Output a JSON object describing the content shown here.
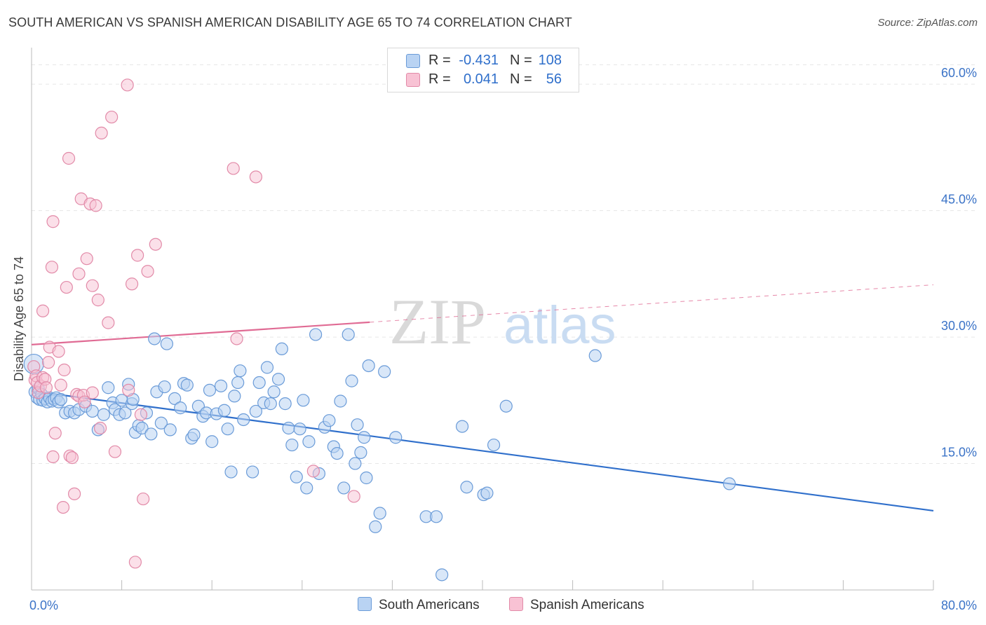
{
  "title": "SOUTH AMERICAN VS SPANISH AMERICAN DISABILITY AGE 65 TO 74 CORRELATION CHART",
  "source": "Source: ZipAtlas.com",
  "watermark": {
    "zip": "ZIP",
    "atlas": "atlas"
  },
  "legend": {
    "r_label": "R =",
    "n_label": "N =",
    "rows": [
      {
        "r": "-0.431",
        "n": "108"
      },
      {
        "r": "0.041",
        "n": "56"
      }
    ]
  },
  "colors": {
    "blue_fill": "#b9d3f3",
    "blue_stroke": "#6a9bd8",
    "blue_line": "#2f6fcb",
    "pink_fill": "#f8c2d4",
    "pink_stroke": "#e28aa8",
    "pink_line": "#e06b94",
    "tick_label": "#3b73c7",
    "grid": "#e6e6e6"
  },
  "chart_data": {
    "type": "scatter",
    "title": "SOUTH AMERICAN VS SPANISH AMERICAN DISABILITY AGE 65 TO 74 CORRELATION CHART",
    "xlabel": "",
    "ylabel": "Disability Age 65 to 74",
    "xlim": [
      0,
      80
    ],
    "ylim": [
      0,
      64
    ],
    "x_tick_labels": [
      "0.0%",
      "80.0%"
    ],
    "y_ticks": [
      15,
      30,
      45,
      60
    ],
    "y_tick_labels": [
      "15.0%",
      "30.0%",
      "45.0%",
      "60.0%"
    ],
    "grid": "horizontal dashed",
    "legend_position": "top-center",
    "series": [
      {
        "name": "South Americans",
        "r": -0.431,
        "n": 108,
        "trend": {
          "x": [
            0,
            80
          ],
          "y": [
            23.6,
            9.4
          ],
          "style": "solid"
        },
        "points": [
          [
            0.2,
            26.8
          ],
          [
            0.3,
            23.5
          ],
          [
            0.5,
            22.8
          ],
          [
            0.6,
            23.9
          ],
          [
            0.7,
            22.6
          ],
          [
            0.9,
            23.2
          ],
          [
            1.0,
            22.5
          ],
          [
            1.2,
            22.7
          ],
          [
            1.4,
            22.3
          ],
          [
            1.6,
            22.8
          ],
          [
            1.8,
            22.4
          ],
          [
            2.0,
            22.6
          ],
          [
            2.2,
            22.8
          ],
          [
            2.4,
            22.3
          ],
          [
            2.6,
            22.6
          ],
          [
            3.0,
            21.0
          ],
          [
            3.4,
            21.2
          ],
          [
            3.8,
            21.0
          ],
          [
            4.2,
            21.4
          ],
          [
            4.8,
            21.8
          ],
          [
            5.4,
            21.2
          ],
          [
            5.9,
            19.0
          ],
          [
            6.4,
            20.8
          ],
          [
            6.8,
            24.0
          ],
          [
            7.2,
            22.2
          ],
          [
            7.4,
            21.4
          ],
          [
            7.8,
            20.8
          ],
          [
            8.0,
            22.5
          ],
          [
            8.3,
            21.0
          ],
          [
            8.6,
            24.4
          ],
          [
            8.9,
            22.1
          ],
          [
            9.0,
            22.6
          ],
          [
            9.2,
            18.7
          ],
          [
            9.5,
            19.5
          ],
          [
            9.8,
            19.2
          ],
          [
            10.2,
            21.0
          ],
          [
            10.6,
            18.5
          ],
          [
            10.9,
            29.8
          ],
          [
            11.1,
            23.5
          ],
          [
            11.5,
            19.8
          ],
          [
            11.8,
            24.1
          ],
          [
            12.0,
            29.2
          ],
          [
            12.3,
            19.0
          ],
          [
            12.7,
            22.7
          ],
          [
            13.2,
            21.6
          ],
          [
            13.5,
            24.5
          ],
          [
            13.8,
            24.3
          ],
          [
            14.2,
            18.0
          ],
          [
            14.4,
            18.4
          ],
          [
            14.8,
            21.8
          ],
          [
            15.2,
            20.6
          ],
          [
            15.5,
            21.0
          ],
          [
            15.8,
            23.7
          ],
          [
            16.0,
            17.6
          ],
          [
            16.4,
            20.9
          ],
          [
            16.8,
            24.2
          ],
          [
            17.1,
            21.3
          ],
          [
            17.4,
            19.1
          ],
          [
            17.7,
            14.0
          ],
          [
            18.0,
            23.0
          ],
          [
            18.3,
            24.6
          ],
          [
            18.5,
            26.0
          ],
          [
            18.8,
            20.2
          ],
          [
            19.6,
            14.0
          ],
          [
            19.9,
            21.2
          ],
          [
            20.2,
            24.6
          ],
          [
            20.6,
            22.2
          ],
          [
            20.9,
            26.4
          ],
          [
            21.2,
            22.1
          ],
          [
            21.5,
            23.5
          ],
          [
            21.9,
            25.0
          ],
          [
            22.2,
            28.6
          ],
          [
            22.5,
            22.1
          ],
          [
            22.8,
            19.2
          ],
          [
            23.1,
            17.2
          ],
          [
            23.5,
            13.4
          ],
          [
            23.8,
            19.1
          ],
          [
            24.1,
            22.5
          ],
          [
            24.4,
            12.1
          ],
          [
            24.6,
            17.6
          ],
          [
            25.2,
            30.3
          ],
          [
            25.5,
            13.8
          ],
          [
            26.0,
            19.3
          ],
          [
            26.4,
            20.1
          ],
          [
            26.8,
            17.0
          ],
          [
            27.1,
            16.2
          ],
          [
            27.4,
            22.4
          ],
          [
            27.7,
            12.1
          ],
          [
            28.1,
            30.3
          ],
          [
            28.4,
            24.8
          ],
          [
            28.7,
            15.0
          ],
          [
            28.9,
            19.6
          ],
          [
            29.2,
            16.3
          ],
          [
            29.5,
            18.1
          ],
          [
            29.7,
            13.3
          ],
          [
            29.9,
            26.6
          ],
          [
            30.9,
            9.1
          ],
          [
            31.3,
            25.9
          ],
          [
            32.3,
            18.1
          ],
          [
            30.5,
            7.5
          ],
          [
            35.0,
            8.7
          ],
          [
            35.9,
            8.7
          ],
          [
            36.4,
            1.8
          ],
          [
            38.2,
            19.4
          ],
          [
            38.6,
            12.2
          ],
          [
            40.1,
            11.3
          ],
          [
            40.4,
            11.5
          ],
          [
            41.0,
            17.2
          ],
          [
            42.1,
            21.8
          ],
          [
            50.0,
            27.8
          ],
          [
            61.9,
            12.6
          ]
        ]
      },
      {
        "name": "Spanish Americans",
        "r": 0.041,
        "n": 56,
        "trend": {
          "x": [
            0,
            80
          ],
          "y": [
            29.1,
            36.2
          ],
          "style": "solid to x=30, dashed beyond"
        },
        "points": [
          [
            0.2,
            26.5
          ],
          [
            0.3,
            24.9
          ],
          [
            0.4,
            25.4
          ],
          [
            0.5,
            24.6
          ],
          [
            0.6,
            23.4
          ],
          [
            0.8,
            24.2
          ],
          [
            1.0,
            25.2
          ],
          [
            1.2,
            25.0
          ],
          [
            1.0,
            33.1
          ],
          [
            1.3,
            24.0
          ],
          [
            1.5,
            27.0
          ],
          [
            1.6,
            28.8
          ],
          [
            1.8,
            38.3
          ],
          [
            1.9,
            43.7
          ],
          [
            1.9,
            15.8
          ],
          [
            2.1,
            18.6
          ],
          [
            2.4,
            28.3
          ],
          [
            2.6,
            24.3
          ],
          [
            2.8,
            9.8
          ],
          [
            2.9,
            26.1
          ],
          [
            3.1,
            35.9
          ],
          [
            3.3,
            51.2
          ],
          [
            3.4,
            15.9
          ],
          [
            3.6,
            15.7
          ],
          [
            3.8,
            11.4
          ],
          [
            4.0,
            23.2
          ],
          [
            4.2,
            23.0
          ],
          [
            4.2,
            37.5
          ],
          [
            4.4,
            46.4
          ],
          [
            4.6,
            23.1
          ],
          [
            4.7,
            22.3
          ],
          [
            4.9,
            39.3
          ],
          [
            5.2,
            45.8
          ],
          [
            5.4,
            23.4
          ],
          [
            5.4,
            36.1
          ],
          [
            5.7,
            45.6
          ],
          [
            5.9,
            34.4
          ],
          [
            6.1,
            19.2
          ],
          [
            6.2,
            54.2
          ],
          [
            6.8,
            31.7
          ],
          [
            7.1,
            56.1
          ],
          [
            7.4,
            16.4
          ],
          [
            8.5,
            59.9
          ],
          [
            8.6,
            23.7
          ],
          [
            8.9,
            36.3
          ],
          [
            9.2,
            3.3
          ],
          [
            9.4,
            39.7
          ],
          [
            9.7,
            20.8
          ],
          [
            9.9,
            10.8
          ],
          [
            10.3,
            37.8
          ],
          [
            11.0,
            41.0
          ],
          [
            18.2,
            29.8
          ],
          [
            17.9,
            50.0
          ],
          [
            19.9,
            49.0
          ],
          [
            25.0,
            14.1
          ],
          [
            28.6,
            11.1
          ]
        ]
      }
    ]
  }
}
